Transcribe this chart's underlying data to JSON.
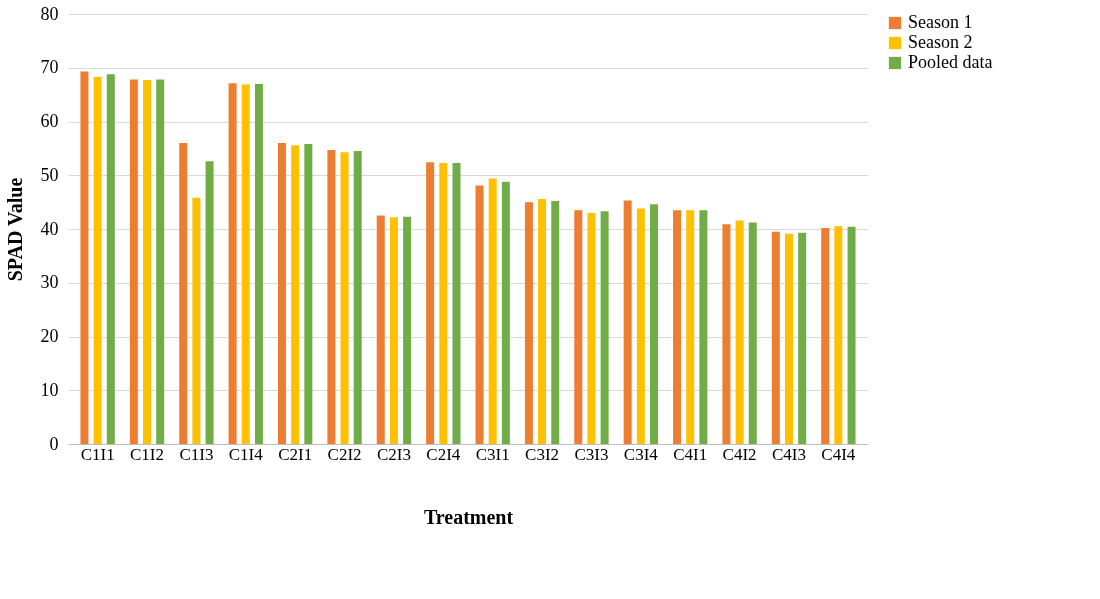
{
  "chart_data": {
    "type": "bar",
    "xlabel": "Treatment",
    "ylabel": "SPAD Value",
    "categories": [
      "C1I1",
      "C1I2",
      "C1I3",
      "C1I4",
      "C2I1",
      "C2I2",
      "C2I3",
      "C2I4",
      "C3I1",
      "C3I2",
      "C3I3",
      "C3I4",
      "C4I1",
      "C4I2",
      "C4I3",
      "C4I4"
    ],
    "series": [
      {
        "name": "Season 1",
        "color": "#ed7d31",
        "values": [
          69.3,
          67.8,
          56.0,
          67.1,
          56.0,
          54.7,
          42.5,
          52.4,
          48.1,
          45.0,
          43.5,
          45.3,
          43.5,
          40.9,
          39.5,
          40.2
        ]
      },
      {
        "name": "Season 2",
        "color": "#ffc000",
        "values": [
          68.3,
          67.7,
          45.8,
          66.9,
          55.6,
          54.3,
          42.2,
          52.3,
          49.4,
          45.6,
          43.0,
          43.8,
          43.5,
          41.6,
          39.1,
          40.5
        ]
      },
      {
        "name": "Pooled data",
        "color": "#70ad47",
        "values": [
          68.8,
          67.8,
          52.6,
          67.0,
          55.8,
          54.5,
          42.3,
          52.3,
          48.8,
          45.2,
          43.3,
          44.6,
          43.5,
          41.2,
          39.3,
          40.4
        ]
      }
    ],
    "ylim": [
      0,
      80
    ],
    "yticks": [
      0,
      10,
      20,
      30,
      40,
      50,
      60,
      70,
      80
    ],
    "grid": "y",
    "legend": "right"
  }
}
